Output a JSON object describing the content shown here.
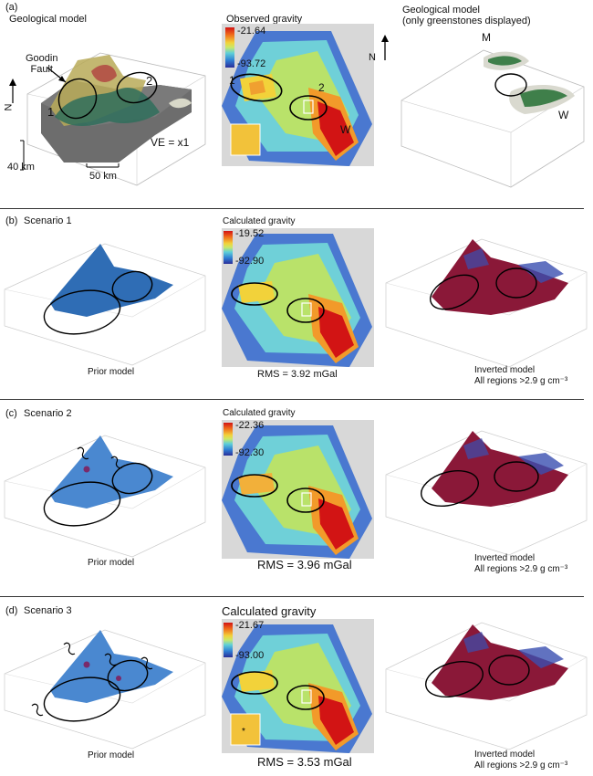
{
  "sections": [
    {
      "label": "(a)",
      "left_title": "Geological model",
      "fault_label": "Goodin\nFault",
      "ve_label": "VE = x1",
      "scale_v": "40 km",
      "scale_h": "50 km",
      "north": "N",
      "map_title": "Observed gravity",
      "cmax": "-21.64",
      "cmin": "-93.72",
      "region_labels": [
        "1",
        "2",
        "1",
        "2",
        "W"
      ],
      "right_title": "Geological model\n(only greenstones displayed)",
      "right_labels": [
        "M",
        "W"
      ]
    },
    {
      "label": "(b)",
      "scenario": "Scenario 1",
      "map_title": "Calculated gravity",
      "cmax": "-19.52",
      "cmin": "-92.90",
      "prior": "Prior model",
      "rms": "RMS = 3.92 mGal",
      "inv_title": "Inverted model",
      "inv_sub": "All regions >2.9 g cm⁻³"
    },
    {
      "label": "(c)",
      "scenario": "Scenario 2",
      "map_title": "Calculated gravity",
      "cmax": "-22.36",
      "cmin": "-92.30",
      "prior": "Prior model",
      "rms": "RMS = 3.96 mGal",
      "inv_title": "Inverted model",
      "inv_sub": "All regions >2.9 g cm⁻³"
    },
    {
      "label": "(d)",
      "scenario": "Scenario 3",
      "map_title": "Calculated gravity",
      "cmax": "-21.67",
      "cmin": "-93.00",
      "prior": "Prior model",
      "rms": "RMS = 3.53 mGal",
      "inv_title": "Inverted model",
      "inv_sub": "All regions >2.9 g cm⁻³"
    }
  ],
  "colors": {
    "hot": "#d21414",
    "warm": "#f2c23a",
    "mid": "#7fd6c0",
    "cool": "#3d86d6",
    "cold": "#2a2e99",
    "prior_blue": "#2f6db5",
    "inv_red": "#8a1838",
    "olive": "#b8a85a",
    "green": "#3f7f4a"
  }
}
